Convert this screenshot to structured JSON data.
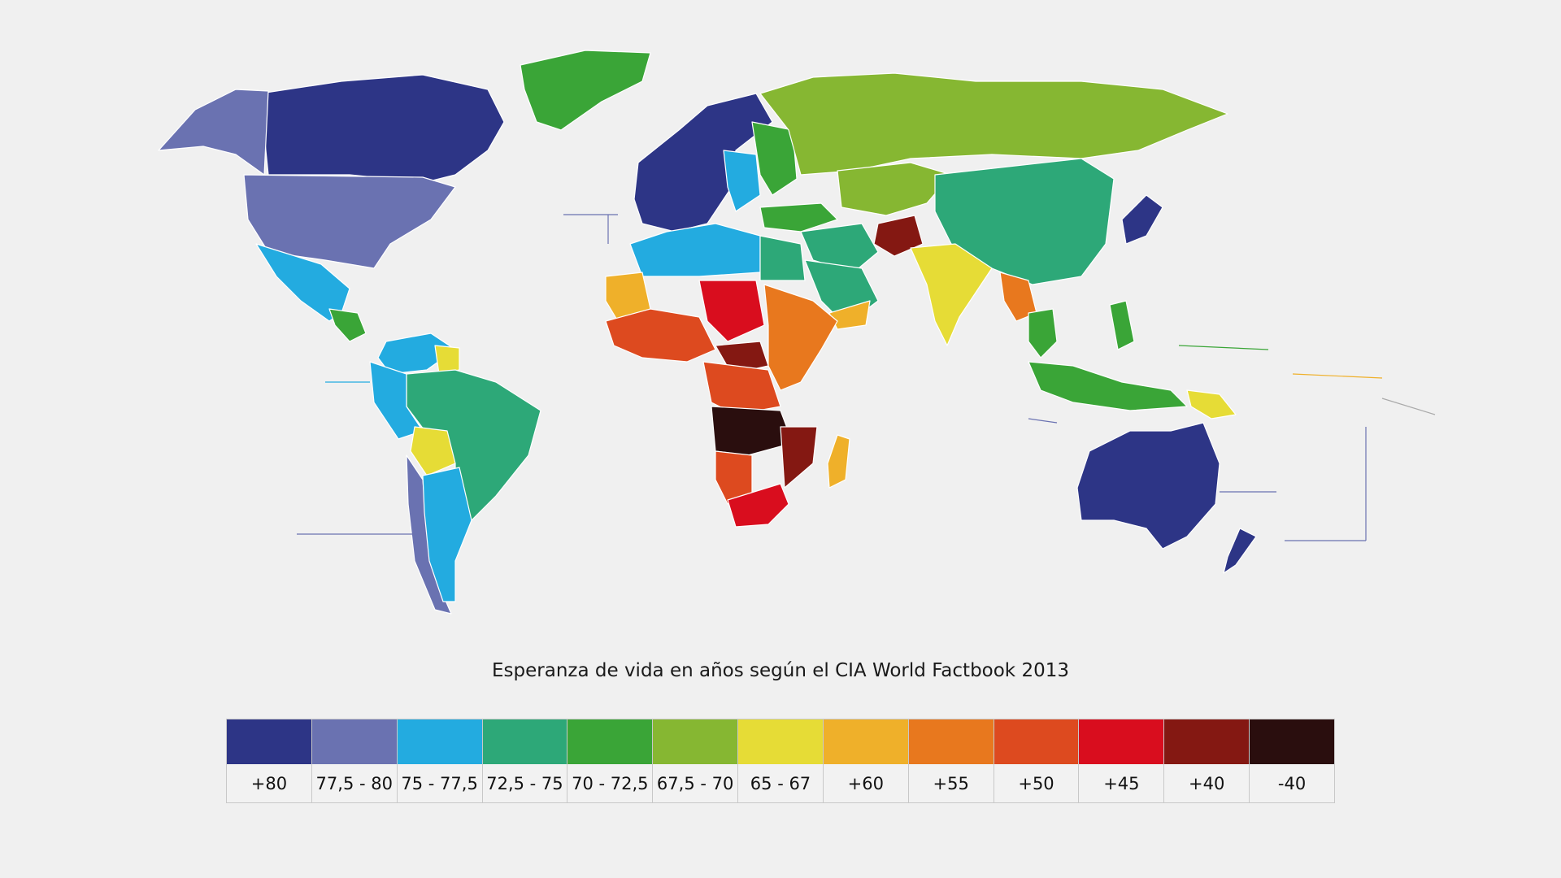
{
  "caption": "Esperanza de vida en años según el CIA World Factbook 2013",
  "legend": [
    {
      "label": "+80",
      "color": "#2d3586"
    },
    {
      "label": "77,5 - 80",
      "color": "#6a72b1"
    },
    {
      "label": "75 - 77,5",
      "color": "#23abe0"
    },
    {
      "label": "72,5 - 75",
      "color": "#2da878"
    },
    {
      "label": "70 - 72,5",
      "color": "#3aa537"
    },
    {
      "label": "67,5 - 70",
      "color": "#86b732"
    },
    {
      "label": "65 - 67",
      "color": "#e6dc36"
    },
    {
      "label": "+60",
      "color": "#efb02a"
    },
    {
      "label": "+55",
      "color": "#e8781e"
    },
    {
      "label": "+50",
      "color": "#dd4a1f"
    },
    {
      "label": "+45",
      "color": "#d90d1e"
    },
    {
      "label": "+40",
      "color": "#841812"
    },
    {
      "label": "-40",
      "color": "#2a0e0e"
    }
  ],
  "regions": [
    {
      "name": "canada-alaska-north",
      "band": 0
    },
    {
      "name": "alaska",
      "band": 1
    },
    {
      "name": "greenland",
      "band": 4
    },
    {
      "name": "usa",
      "band": 1
    },
    {
      "name": "mexico",
      "band": 2
    },
    {
      "name": "central-america",
      "band": 4
    },
    {
      "name": "northern-south-america",
      "band": 2
    },
    {
      "name": "guyana-suriname",
      "band": 6
    },
    {
      "name": "brazil",
      "band": 3
    },
    {
      "name": "peru-andes",
      "band": 2
    },
    {
      "name": "bolivia",
      "band": 6
    },
    {
      "name": "chile",
      "band": 1
    },
    {
      "name": "argentina",
      "band": 2
    },
    {
      "name": "western-europe",
      "band": 0
    },
    {
      "name": "central-europe",
      "band": 2
    },
    {
      "name": "eastern-europe",
      "band": 4
    },
    {
      "name": "turkey",
      "band": 4
    },
    {
      "name": "russia",
      "band": 5
    },
    {
      "name": "central-asia",
      "band": 5
    },
    {
      "name": "china",
      "band": 3
    },
    {
      "name": "middle-east",
      "band": 3
    },
    {
      "name": "afghanistan",
      "band": 11
    },
    {
      "name": "india",
      "band": 6
    },
    {
      "name": "southeast-asia",
      "band": 4
    },
    {
      "name": "myanmar-laos",
      "band": 8
    },
    {
      "name": "japan-korea",
      "band": 0
    },
    {
      "name": "indonesia",
      "band": 4
    },
    {
      "name": "philippines",
      "band": 4
    },
    {
      "name": "papua-new-guinea",
      "band": 6
    },
    {
      "name": "australia",
      "band": 0
    },
    {
      "name": "new-zealand",
      "band": 0
    },
    {
      "name": "north-africa",
      "band": 2
    },
    {
      "name": "egypt",
      "band": 3
    },
    {
      "name": "west-africa",
      "band": 9
    },
    {
      "name": "mauritania-mali",
      "band": 7
    },
    {
      "name": "sahel",
      "band": 10
    },
    {
      "name": "central-africa",
      "band": 11
    },
    {
      "name": "east-africa",
      "band": 8
    },
    {
      "name": "congo",
      "band": 9
    },
    {
      "name": "angola-zambia",
      "band": 12
    },
    {
      "name": "mozambique",
      "band": 11
    },
    {
      "name": "namibia",
      "band": 9
    },
    {
      "name": "south-africa",
      "band": 10
    },
    {
      "name": "madagascar",
      "band": 7
    },
    {
      "name": "arabian-peninsula",
      "band": 3
    },
    {
      "name": "yemen-oman",
      "band": 7
    }
  ]
}
